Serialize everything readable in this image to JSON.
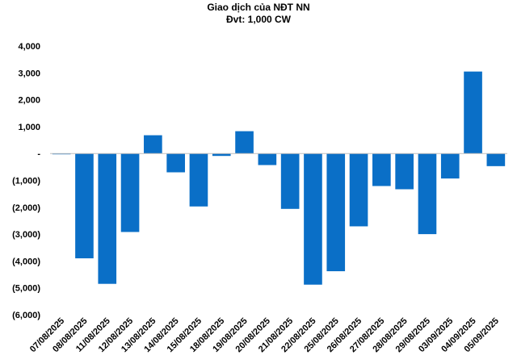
{
  "colors": {
    "bar": "#0A6FC7",
    "axis": "#BFBFBF",
    "text": "#000000"
  },
  "chart_data": {
    "type": "bar",
    "title": "Giao dịch của NĐT NN",
    "subtitle": "Đvt: 1,000 CW",
    "xlabel": "",
    "ylabel": "",
    "ylim": [
      -6000,
      4000
    ],
    "yticks": [
      4000,
      3000,
      2000,
      1000,
      0,
      -1000,
      -2000,
      -3000,
      -4000,
      -5000,
      -6000
    ],
    "ytick_labels": [
      "4,000",
      "3,000",
      "2,000",
      "1,000",
      "-",
      "(1,000)",
      "(2,000)",
      "(3,000)",
      "(4,000)",
      "(5,000)",
      "(6,000)"
    ],
    "grid": false,
    "legend": "none",
    "categories": [
      "07/08/2025",
      "08/08/2025",
      "11/08/2025",
      "12/08/2025",
      "13/08/2025",
      "14/08/2025",
      "15/08/2025",
      "18/08/2025",
      "19/08/2025",
      "20/08/2025",
      "21/08/2025",
      "22/08/2025",
      "25/08/2025",
      "26/08/2025",
      "27/08/2025",
      "28/08/2025",
      "29/08/2025",
      "03/09/2025",
      "04/09/2025",
      "05/09/2025"
    ],
    "values": [
      -30,
      -3900,
      -4850,
      -2920,
      680,
      -700,
      -1970,
      -90,
      830,
      -430,
      -2060,
      -4880,
      -4380,
      -2710,
      -1210,
      -1330,
      -3000,
      -930,
      3050,
      -470
    ]
  }
}
